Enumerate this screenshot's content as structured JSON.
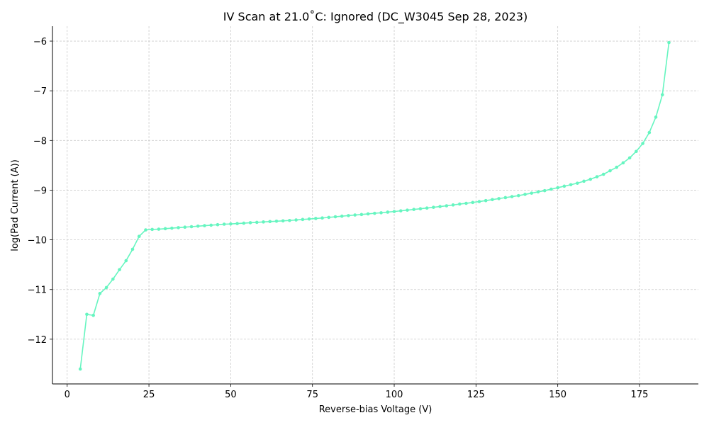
{
  "chart_data": {
    "type": "line",
    "title": "IV Scan at 21.0˚C: Ignored (DC_W3045 Sep 28, 2023)",
    "xlabel": "Reverse-bias Voltage (V)",
    "ylabel": "log(Pad Current (A))",
    "xlim": [
      -4.5,
      193
    ],
    "ylim": [
      -12.9,
      -5.7
    ],
    "xticks": [
      0,
      25,
      50,
      75,
      100,
      125,
      150,
      175
    ],
    "xtick_labels": [
      "0",
      "25",
      "50",
      "75",
      "100",
      "125",
      "150",
      "175"
    ],
    "yticks": [
      -12,
      -11,
      -10,
      -9,
      -8,
      -7,
      -6
    ],
    "ytick_labels": [
      "−12",
      "−11",
      "−10",
      "−9",
      "−8",
      "−7",
      "−6"
    ],
    "grid": true,
    "line_color": "#66f5c0",
    "series": [
      {
        "x": [
          4,
          6,
          8,
          10,
          12,
          14,
          16,
          18,
          20,
          22,
          24,
          26,
          28,
          30,
          32,
          34,
          36,
          38,
          40,
          42,
          44,
          46,
          48,
          50,
          52,
          54,
          56,
          58,
          60,
          62,
          64,
          66,
          68,
          70,
          72,
          74,
          76,
          78,
          80,
          82,
          84,
          86,
          88,
          90,
          92,
          94,
          96,
          98,
          100,
          102,
          104,
          106,
          108,
          110,
          112,
          114,
          116,
          118,
          120,
          122,
          124,
          126,
          128,
          130,
          132,
          134,
          136,
          138,
          140,
          142,
          144,
          146,
          148,
          150,
          152,
          154,
          156,
          158,
          160,
          162,
          164,
          166,
          168,
          170,
          172,
          174,
          176,
          178,
          180,
          182,
          184
        ],
        "y": [
          -12.6,
          -11.5,
          -11.52,
          -11.08,
          -10.96,
          -10.79,
          -10.6,
          -10.42,
          -10.19,
          -9.93,
          -9.8,
          -9.79,
          -9.785,
          -9.775,
          -9.765,
          -9.755,
          -9.745,
          -9.735,
          -9.725,
          -9.715,
          -9.705,
          -9.695,
          -9.685,
          -9.68,
          -9.672,
          -9.665,
          -9.655,
          -9.648,
          -9.64,
          -9.632,
          -9.625,
          -9.618,
          -9.61,
          -9.6,
          -9.59,
          -9.58,
          -9.57,
          -9.56,
          -9.548,
          -9.536,
          -9.524,
          -9.512,
          -9.5,
          -9.49,
          -9.478,
          -9.466,
          -9.455,
          -9.442,
          -9.43,
          -9.416,
          -9.402,
          -9.388,
          -9.374,
          -9.36,
          -9.345,
          -9.33,
          -9.315,
          -9.298,
          -9.28,
          -9.265,
          -9.248,
          -9.23,
          -9.21,
          -9.19,
          -9.17,
          -9.15,
          -9.13,
          -9.11,
          -9.085,
          -9.06,
          -9.035,
          -9.01,
          -8.98,
          -8.95,
          -8.92,
          -8.89,
          -8.86,
          -8.82,
          -8.78,
          -8.73,
          -8.68,
          -8.61,
          -8.54,
          -8.45,
          -8.35,
          -8.22,
          -8.06,
          -7.84,
          -7.53,
          -7.08,
          -6.03
        ]
      }
    ]
  }
}
